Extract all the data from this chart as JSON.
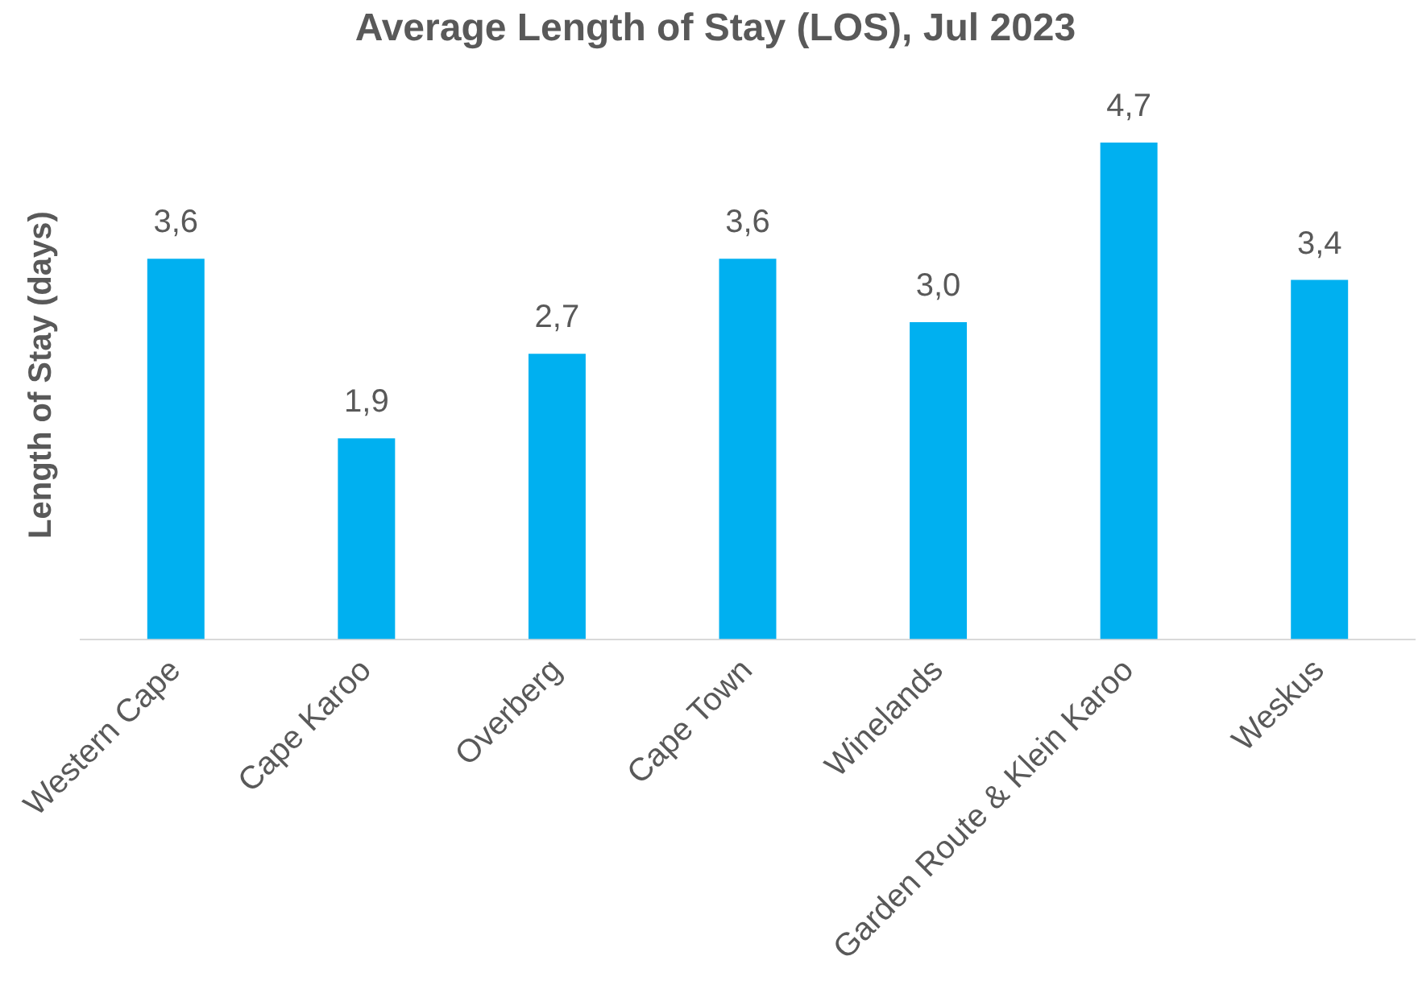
{
  "chart_data": {
    "type": "bar",
    "title": "Average Length of Stay (LOS), Jul 2023",
    "ylabel": "Length of Stay (days)",
    "categories": [
      "Western Cape",
      "Cape Karoo",
      "Overberg",
      "Cape Town",
      "Winelands",
      "Garden Route & Klein Karoo",
      "Weskus"
    ],
    "values": [
      3.6,
      1.9,
      2.7,
      3.6,
      3.0,
      4.7,
      3.4
    ],
    "value_labels": [
      "3,6",
      "1,9",
      "2,7",
      "3,6",
      "3,0",
      "4,7",
      "3,4"
    ],
    "color": "#00b0f0",
    "tick_labels": "x",
    "legend": false,
    "grid": false
  }
}
